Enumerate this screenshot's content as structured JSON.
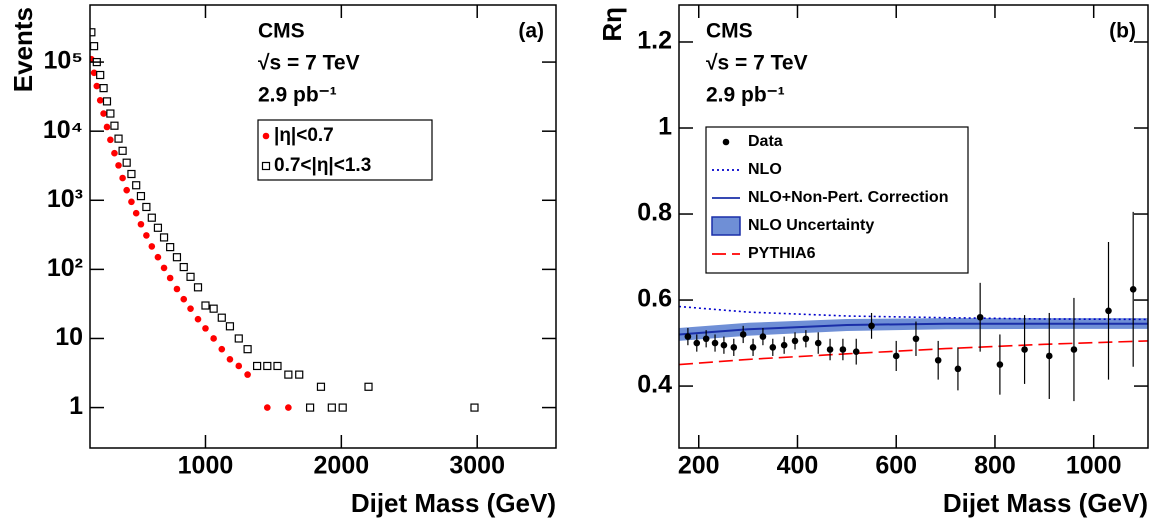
{
  "chart_data": [
    {
      "type": "scatter",
      "panel_label": "(a)",
      "annotations": [
        "CMS",
        "√s = 7 TeV",
        "2.9 pb⁻¹"
      ],
      "xlabel": "Dijet Mass (GeV)",
      "ylabel": "Events",
      "log_y": true,
      "xlim": [
        150,
        3580
      ],
      "xticks": [
        1000,
        2000,
        3000
      ],
      "ylim": [
        0.26,
        670000
      ],
      "yticks": [
        1,
        10,
        {
          "value": 100,
          "label": "10²"
        },
        {
          "value": 1000,
          "label": "10³"
        },
        {
          "value": 10000,
          "label": "10⁴"
        },
        {
          "value": 100000,
          "label": "10⁵"
        }
      ],
      "series": [
        {
          "name": "|η|<0.7",
          "color": "#ff0000",
          "marker": "dot",
          "x": [
            160,
            180,
            200,
            225,
            250,
            275,
            300,
            330,
            360,
            390,
            420,
            455,
            490,
            525,
            565,
            605,
            650,
            695,
            740,
            790,
            840,
            890,
            945,
            1000,
            1060,
            1120,
            1180,
            1245,
            1310,
            1380,
            1455,
            1610
          ],
          "values": [
            110000,
            70000,
            45000,
            28000,
            18000,
            11500,
            7500,
            4800,
            3200,
            2100,
            1400,
            950,
            650,
            450,
            310,
            215,
            150,
            105,
            75,
            52,
            37,
            27,
            19,
            14,
            10,
            7,
            5,
            4,
            3,
            4,
            1,
            1
          ]
        },
        {
          "name": "0.7<|η|<1.3",
          "color": "#000000",
          "marker": "open-square",
          "x": [
            160,
            180,
            200,
            225,
            250,
            275,
            300,
            330,
            360,
            390,
            420,
            455,
            490,
            525,
            565,
            605,
            650,
            695,
            740,
            790,
            840,
            890,
            945,
            1000,
            1060,
            1120,
            1180,
            1245,
            1310,
            1380,
            1455,
            1530,
            1610,
            1690,
            1770,
            1850,
            1930,
            2010,
            2200,
            2980
          ],
          "values": [
            270000,
            170000,
            100000,
            65000,
            42000,
            27000,
            18000,
            12000,
            7800,
            5200,
            3500,
            2400,
            1650,
            1150,
            800,
            560,
            400,
            290,
            210,
            150,
            108,
            78,
            55,
            30,
            27,
            20,
            15,
            10,
            7,
            4,
            4,
            4,
            3,
            3,
            1,
            2,
            1,
            1,
            2,
            1
          ]
        }
      ]
    },
    {
      "type": "line",
      "panel_label": "(b)",
      "annotations": [
        "CMS",
        "√s = 7 TeV",
        "2.9 pb⁻¹"
      ],
      "xlabel": "Dijet Mass (GeV)",
      "ylabel": "Rη",
      "log_y": false,
      "xlim": [
        160,
        1110
      ],
      "xticks": [
        200,
        400,
        600,
        800,
        1000
      ],
      "ylim": [
        0.256,
        1.286
      ],
      "yticks": [
        0.4,
        0.6,
        0.8,
        1,
        1.2
      ],
      "series": [
        {
          "name": "Data",
          "color": "#000000",
          "kind": "points",
          "x": [
            178,
            196,
            215,
            233,
            251,
            271,
            290,
            310,
            330,
            350,
            373,
            395,
            417,
            442,
            466,
            492,
            519,
            550,
            600,
            640,
            685,
            725,
            770,
            810,
            860,
            910,
            960,
            1030,
            1080
          ],
          "values": [
            0.515,
            0.5,
            0.51,
            0.5,
            0.495,
            0.49,
            0.52,
            0.49,
            0.515,
            0.49,
            0.495,
            0.505,
            0.51,
            0.5,
            0.485,
            0.485,
            0.48,
            0.54,
            0.47,
            0.51,
            0.46,
            0.44,
            0.56,
            0.45,
            0.485,
            0.47,
            0.485,
            0.575,
            0.625
          ],
          "yerr": [
            0.02,
            0.02,
            0.02,
            0.02,
            0.02,
            0.02,
            0.02,
            0.02,
            0.02,
            0.02,
            0.02,
            0.02,
            0.02,
            0.025,
            0.025,
            0.025,
            0.03,
            0.03,
            0.035,
            0.04,
            0.045,
            0.05,
            0.08,
            0.07,
            0.08,
            0.1,
            0.12,
            0.16,
            0.18
          ]
        },
        {
          "name": "NLO",
          "color": "#0000cc",
          "kind": "dotted",
          "x": [
            160,
            300,
            500,
            700,
            900,
            1110
          ],
          "values": [
            0.585,
            0.572,
            0.563,
            0.559,
            0.556,
            0.555
          ]
        },
        {
          "name": "NLO+Non-Pert. Correction",
          "color": "#1a2fa8",
          "kind": "solid",
          "x": [
            160,
            300,
            500,
            700,
            900,
            1110
          ],
          "values": [
            0.52,
            0.532,
            0.542,
            0.545,
            0.545,
            0.545
          ]
        },
        {
          "name": "NLO Uncertainty",
          "color": "#6f8fd6",
          "kind": "band",
          "x": [
            160,
            300,
            500,
            700,
            900,
            1110
          ],
          "upper": [
            0.535,
            0.547,
            0.556,
            0.558,
            0.558,
            0.558
          ],
          "lower": [
            0.505,
            0.517,
            0.528,
            0.532,
            0.533,
            0.533
          ]
        },
        {
          "name": "PYTHIA6",
          "color": "#ff0000",
          "kind": "dashed",
          "x": [
            160,
            300,
            500,
            700,
            900,
            1110
          ],
          "values": [
            0.45,
            0.462,
            0.475,
            0.487,
            0.497,
            0.505
          ]
        }
      ]
    }
  ]
}
